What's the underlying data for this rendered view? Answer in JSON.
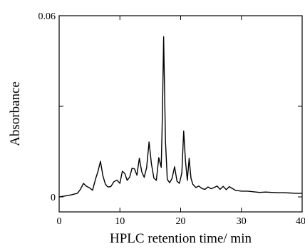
{
  "chart_data": {
    "type": "line",
    "title": "",
    "xlabel": "HPLC retention time/ min",
    "ylabel": "Absorbance",
    "xlim": [
      0,
      40
    ],
    "ylim": [
      0,
      0.06
    ],
    "grid": false,
    "x_ticks": [
      0,
      10,
      20,
      30,
      40
    ],
    "x_tick_labels": [
      "0",
      "10",
      "20",
      "30",
      "40"
    ],
    "y_tick_labels": [
      {
        "value": 0,
        "label": "0"
      },
      {
        "value": 0.06,
        "label": "0.06"
      }
    ],
    "series": [
      {
        "color": "#000000",
        "x": [
          0.0,
          1.0,
          2.0,
          3.0,
          3.5,
          4.0,
          4.5,
          5.0,
          5.5,
          6.0,
          6.4,
          6.8,
          7.2,
          7.6,
          8.0,
          8.5,
          9.0,
          9.5,
          10.0,
          10.4,
          10.8,
          11.2,
          11.6,
          12.0,
          12.4,
          12.8,
          13.2,
          13.6,
          14.0,
          14.4,
          14.8,
          15.2,
          15.6,
          16.0,
          16.4,
          16.8,
          17.0,
          17.2,
          17.5,
          17.8,
          18.2,
          18.6,
          19.0,
          19.4,
          19.8,
          20.2,
          20.5,
          20.8,
          21.1,
          21.4,
          21.7,
          22.0,
          22.5,
          23.0,
          23.5,
          24.0,
          24.5,
          25.0,
          25.5,
          26.0,
          26.5,
          27.0,
          27.5,
          28.0,
          28.5,
          29.0,
          30.0,
          31.0,
          32.0,
          33.0,
          34.0,
          35.0,
          36.0,
          37.0,
          38.0,
          39.0,
          40.0
        ],
        "y": [
          0.0,
          0.0003,
          0.0007,
          0.0012,
          0.0025,
          0.0045,
          0.0035,
          0.003,
          0.0022,
          0.006,
          0.0085,
          0.0118,
          0.007,
          0.0043,
          0.0033,
          0.0034,
          0.005,
          0.0056,
          0.0045,
          0.0085,
          0.0078,
          0.0055,
          0.0065,
          0.0095,
          0.0093,
          0.0072,
          0.0128,
          0.0083,
          0.0065,
          0.0097,
          0.0182,
          0.0108,
          0.0062,
          0.0055,
          0.013,
          0.0098,
          0.0272,
          0.053,
          0.0185,
          0.0058,
          0.0047,
          0.0062,
          0.01,
          0.0052,
          0.0045,
          0.008,
          0.0218,
          0.0118,
          0.0055,
          0.0128,
          0.0062,
          0.0042,
          0.0031,
          0.0036,
          0.0028,
          0.0025,
          0.0033,
          0.0027,
          0.0031,
          0.0036,
          0.0025,
          0.0035,
          0.0024,
          0.0034,
          0.0028,
          0.0022,
          0.0019,
          0.0019,
          0.0017,
          0.0015,
          0.0016,
          0.0015,
          0.0014,
          0.0014,
          0.0013,
          0.0012,
          0.0012
        ]
      }
    ]
  }
}
